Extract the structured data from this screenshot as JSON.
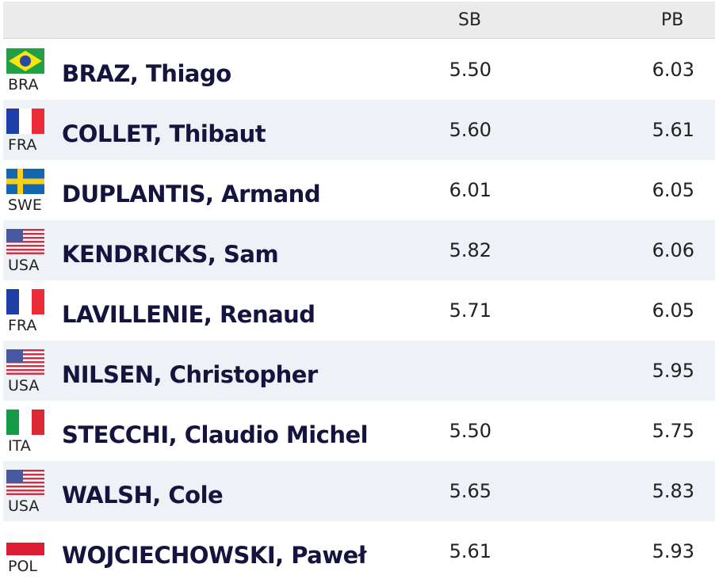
{
  "header": {
    "sb": "SB",
    "pb": "PB"
  },
  "rows": [
    {
      "country": "BRA",
      "name": "BRAZ, Thiago",
      "sb": "5.50",
      "pb": "6.03"
    },
    {
      "country": "FRA",
      "name": "COLLET, Thibaut",
      "sb": "5.60",
      "pb": "5.61"
    },
    {
      "country": "SWE",
      "name": "DUPLANTIS, Armand",
      "sb": "6.01",
      "pb": "6.05"
    },
    {
      "country": "USA",
      "name": "KENDRICKS, Sam",
      "sb": "5.82",
      "pb": "6.06"
    },
    {
      "country": "FRA",
      "name": "LAVILLENIE, Renaud",
      "sb": "5.71",
      "pb": "6.05"
    },
    {
      "country": "USA",
      "name": "NILSEN, Christopher",
      "sb": null,
      "pb": "5.95"
    },
    {
      "country": "ITA",
      "name": "STECCHI, Claudio Michel",
      "sb": "5.50",
      "pb": "5.75"
    },
    {
      "country": "USA",
      "name": "WALSH, Cole",
      "sb": "5.65",
      "pb": "5.83"
    },
    {
      "country": "POL",
      "name": "WOJCIECHOWSKI, Paweł",
      "sb": "5.61",
      "pb": "5.93"
    }
  ]
}
